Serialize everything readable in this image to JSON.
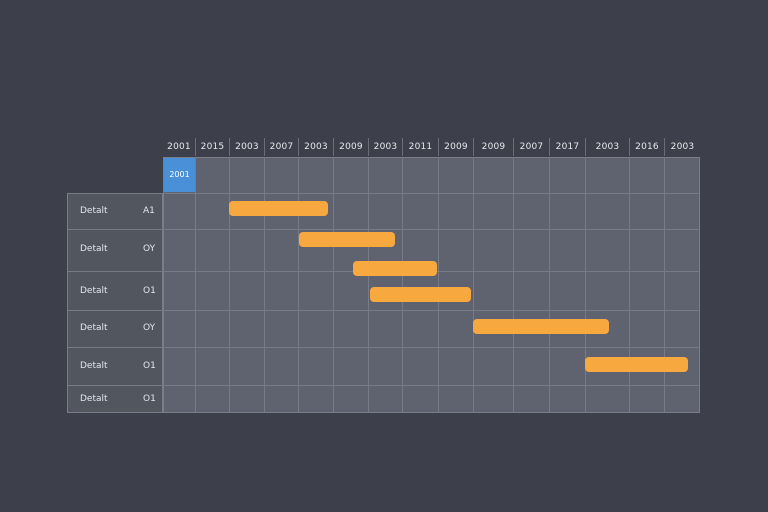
{
  "timeline": {
    "year_headers": [
      "2001",
      "2015",
      "2003",
      "2007",
      "2003",
      "2009",
      "2003",
      "2011",
      "2009",
      "2009",
      "2007",
      "2017",
      "2003",
      "2016",
      "2003"
    ],
    "selected_cell": "2001"
  },
  "rows": [
    {
      "label": "Detalt",
      "code": "A1"
    },
    {
      "label": "Detalt",
      "code": "OY"
    },
    {
      "label": "Detalt",
      "code": "O1"
    },
    {
      "label": "Detalt",
      "code": "OY"
    },
    {
      "label": "Detalt",
      "code": "O1"
    },
    {
      "label": "Detalt",
      "code": "O1"
    }
  ],
  "colors": {
    "background": "#3d404a",
    "grid": "#5f6370",
    "bar": "#f7a940",
    "selected": "#4a90d9"
  }
}
